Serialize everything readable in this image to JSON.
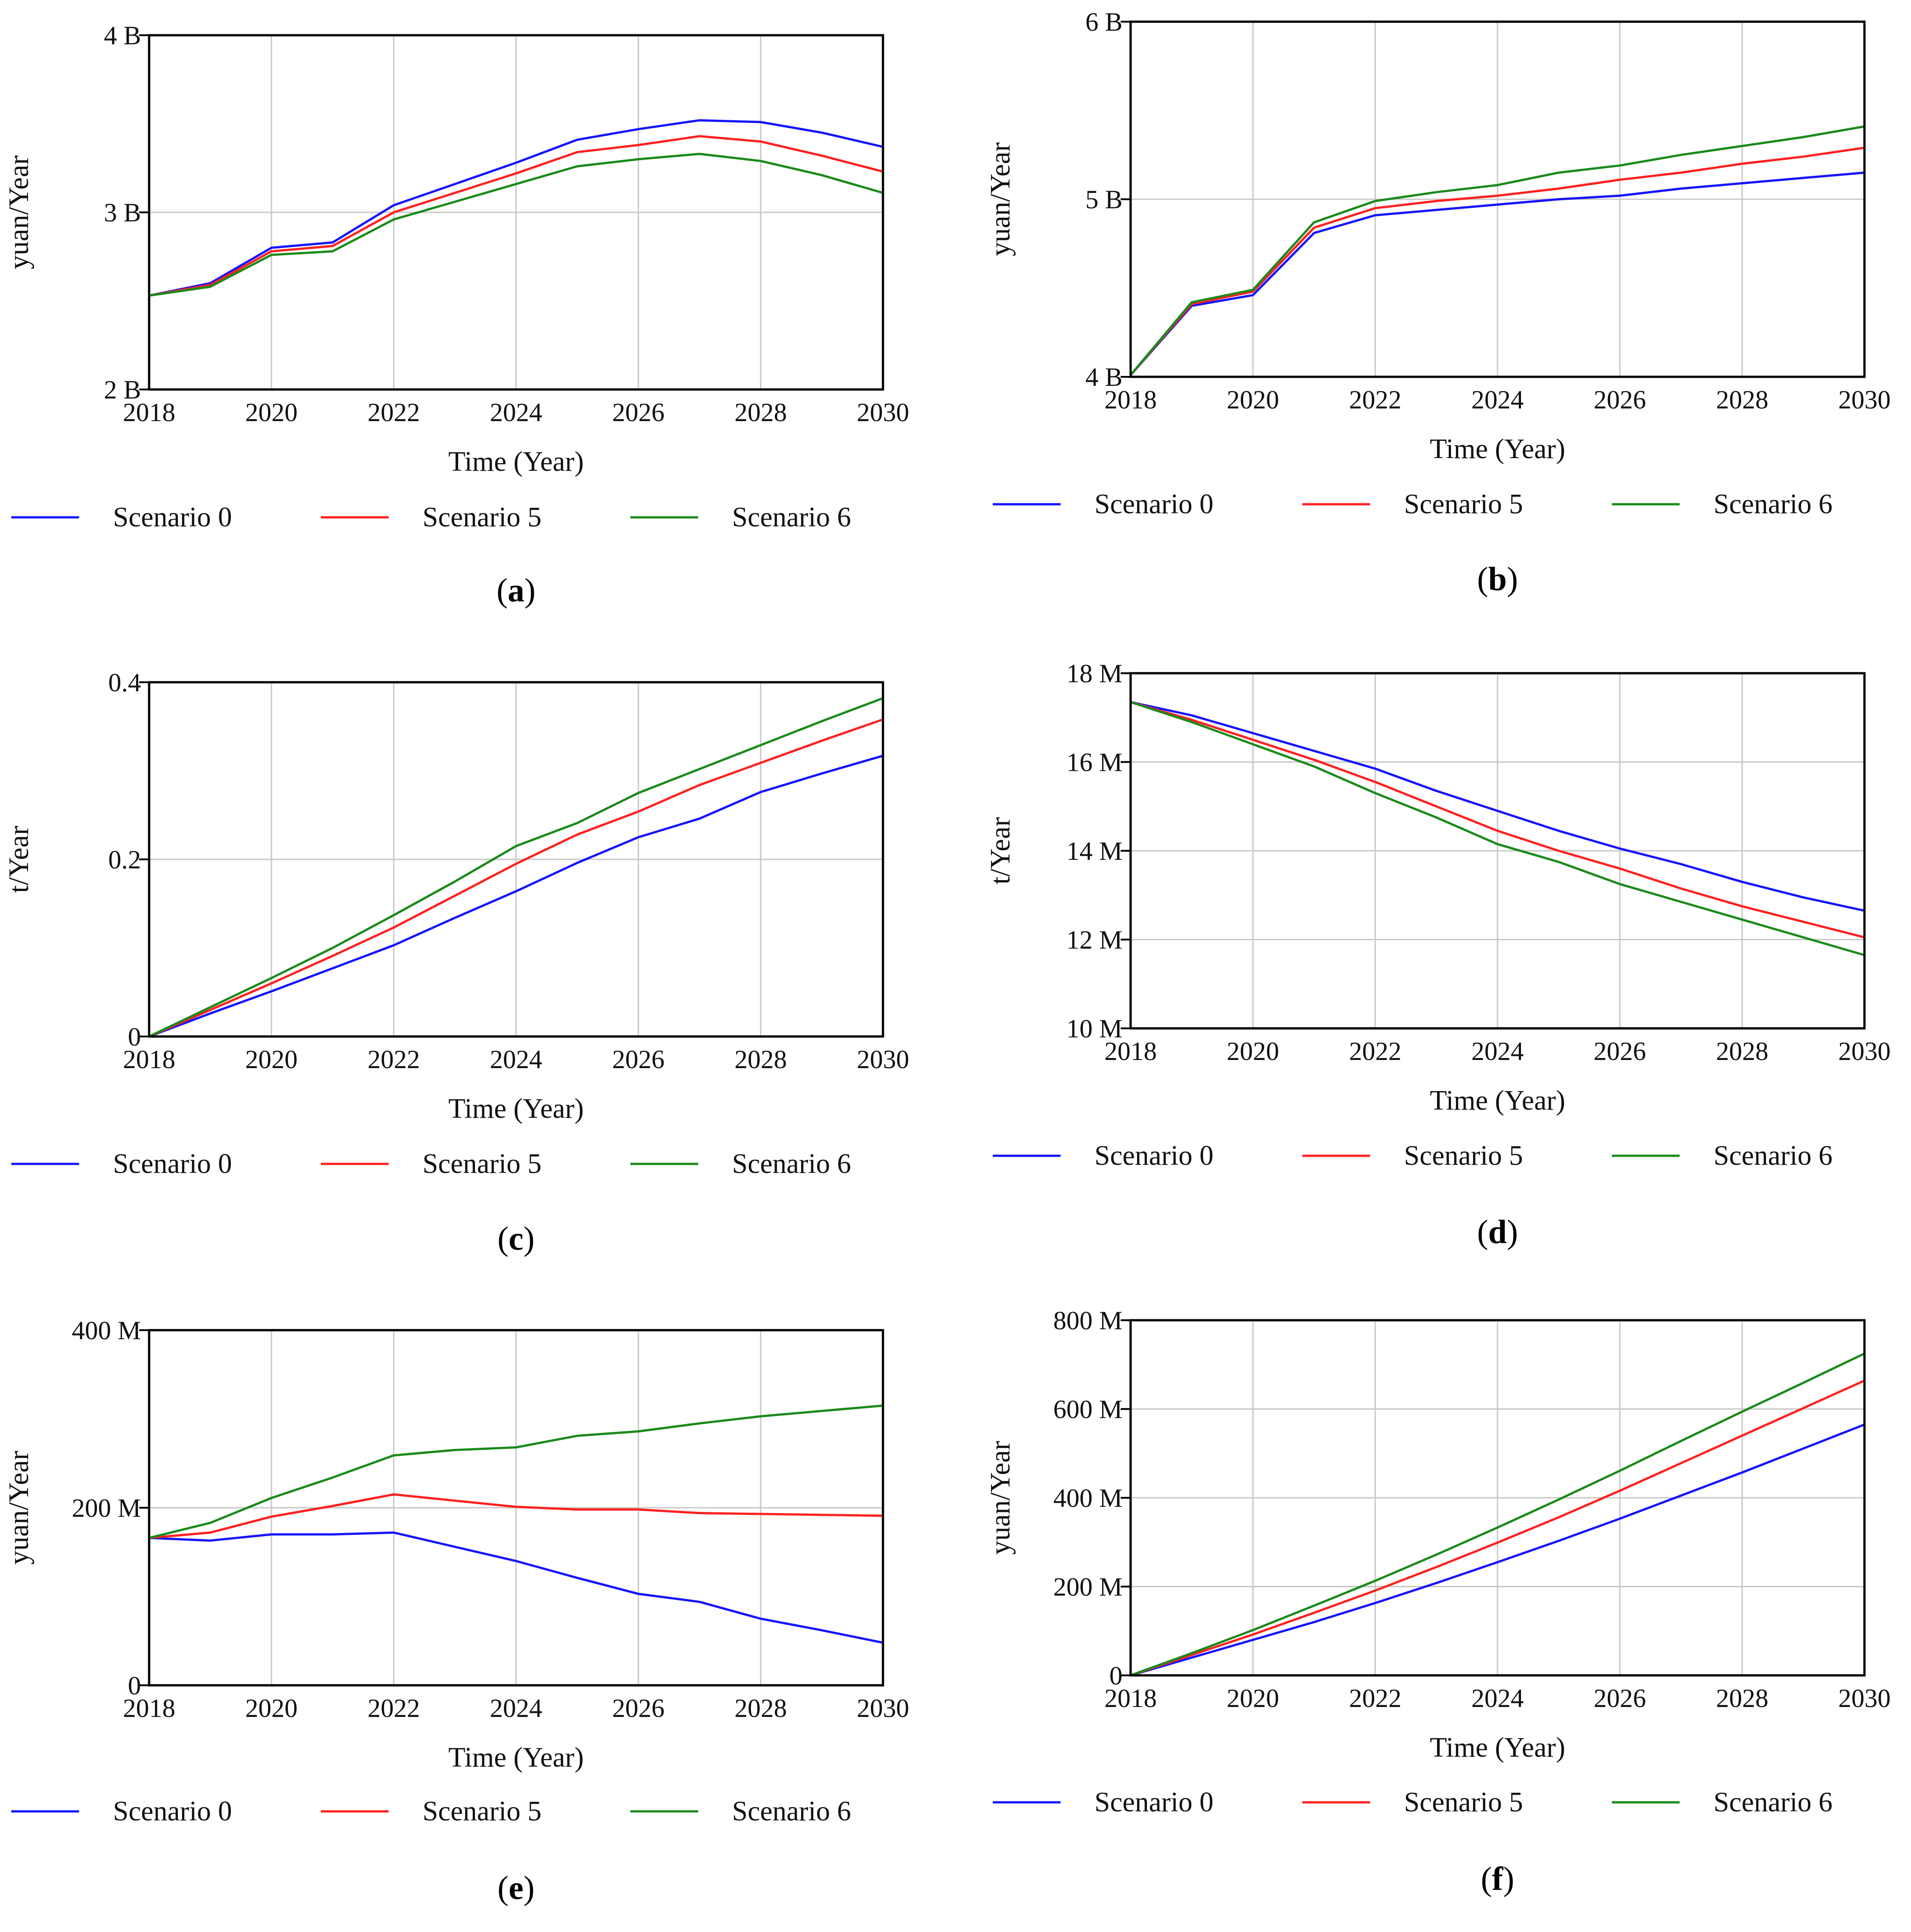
{
  "colors": {
    "Scenario 0": "#1414ff",
    "Scenario 5": "#ff2020",
    "Scenario 6": "#1a8a1a"
  },
  "chart_data": [
    {
      "type": "line",
      "panel_label": "a",
      "xlabel": "Time (Year)",
      "ylabel": "yuan/Year",
      "xlim": [
        2018,
        2030
      ],
      "ylim": [
        2000000000,
        4000000000
      ],
      "x_ticks": [
        2018,
        2020,
        2022,
        2024,
        2026,
        2028,
        2030
      ],
      "y_ticks": [
        2000000000,
        3000000000,
        4000000000
      ],
      "y_tick_labels": [
        "2 B",
        "3 B",
        "4 B"
      ],
      "x": [
        2018,
        2019,
        2020,
        2021,
        2022,
        2023,
        2024,
        2025,
        2026,
        2027,
        2028,
        2029,
        2030
      ],
      "series": [
        {
          "name": "Scenario 0",
          "values": [
            2530000000,
            2600000000,
            2800000000,
            2830000000,
            3040000000,
            3160000000,
            3280000000,
            3410000000,
            3470000000,
            3520000000,
            3510000000,
            3450000000,
            3370000000
          ]
        },
        {
          "name": "Scenario 5",
          "values": [
            2530000000,
            2590000000,
            2780000000,
            2810000000,
            3000000000,
            3110000000,
            3220000000,
            3340000000,
            3380000000,
            3430000000,
            3400000000,
            3320000000,
            3230000000
          ]
        },
        {
          "name": "Scenario 6",
          "values": [
            2530000000,
            2580000000,
            2760000000,
            2780000000,
            2960000000,
            3060000000,
            3160000000,
            3260000000,
            3300000000,
            3330000000,
            3290000000,
            3210000000,
            3110000000
          ]
        }
      ]
    },
    {
      "type": "line",
      "panel_label": "b",
      "xlabel": "Time (Year)",
      "ylabel": "yuan/Year",
      "xlim": [
        2018,
        2030
      ],
      "ylim": [
        4000000000,
        6000000000
      ],
      "x_ticks": [
        2018,
        2020,
        2022,
        2024,
        2026,
        2028,
        2030
      ],
      "y_ticks": [
        4000000000,
        5000000000,
        6000000000
      ],
      "y_tick_labels": [
        "4 B",
        "5 B",
        "6 B"
      ],
      "x": [
        2018,
        2019,
        2020,
        2021,
        2022,
        2023,
        2024,
        2025,
        2026,
        2027,
        2028,
        2029,
        2030
      ],
      "series": [
        {
          "name": "Scenario 0",
          "values": [
            4010000000,
            4400000000,
            4460000000,
            4810000000,
            4910000000,
            4940000000,
            4970000000,
            5000000000,
            5020000000,
            5060000000,
            5090000000,
            5120000000,
            5150000000
          ]
        },
        {
          "name": "Scenario 5",
          "values": [
            4010000000,
            4410000000,
            4480000000,
            4840000000,
            4950000000,
            4990000000,
            5020000000,
            5060000000,
            5110000000,
            5150000000,
            5200000000,
            5240000000,
            5290000000
          ]
        },
        {
          "name": "Scenario 6",
          "values": [
            4010000000,
            4420000000,
            4490000000,
            4870000000,
            4990000000,
            5040000000,
            5080000000,
            5150000000,
            5190000000,
            5250000000,
            5300000000,
            5350000000,
            5410000000
          ]
        }
      ]
    },
    {
      "type": "line",
      "panel_label": "c",
      "xlabel": "Time (Year)",
      "ylabel": "t/Year",
      "xlim": [
        2018,
        2030
      ],
      "ylim": [
        0,
        0.4
      ],
      "x_ticks": [
        2018,
        2020,
        2022,
        2024,
        2026,
        2028,
        2030
      ],
      "y_ticks": [
        0,
        0.2,
        0.4
      ],
      "y_tick_labels": [
        "0",
        "0.2",
        "0.4"
      ],
      "x": [
        2018,
        2019,
        2020,
        2021,
        2022,
        2023,
        2024,
        2025,
        2026,
        2027,
        2028,
        2029,
        2030
      ],
      "series": [
        {
          "name": "Scenario 0",
          "values": [
            0,
            0.026,
            0.051,
            0.077,
            0.103,
            0.134,
            0.164,
            0.196,
            0.225,
            0.246,
            0.276,
            0.297,
            0.317
          ]
        },
        {
          "name": "Scenario 5",
          "values": [
            0,
            0.03,
            0.06,
            0.091,
            0.123,
            0.159,
            0.195,
            0.228,
            0.254,
            0.284,
            0.309,
            0.334,
            0.358
          ]
        },
        {
          "name": "Scenario 6",
          "values": [
            0,
            0.033,
            0.066,
            0.1,
            0.137,
            0.175,
            0.215,
            0.241,
            0.275,
            0.302,
            0.329,
            0.356,
            0.382
          ]
        }
      ]
    },
    {
      "type": "line",
      "panel_label": "d",
      "xlabel": "Time (Year)",
      "ylabel": "t/Year",
      "xlim": [
        2018,
        2030
      ],
      "ylim": [
        10000000,
        18000000
      ],
      "x_ticks": [
        2018,
        2020,
        2022,
        2024,
        2026,
        2028,
        2030
      ],
      "y_ticks": [
        10000000,
        12000000,
        14000000,
        16000000,
        18000000
      ],
      "y_tick_labels": [
        "10 M",
        "12 M",
        "14 M",
        "16 M",
        "18 M"
      ],
      "x": [
        2018,
        2019,
        2020,
        2021,
        2022,
        2023,
        2024,
        2025,
        2026,
        2027,
        2028,
        2029,
        2030
      ],
      "series": [
        {
          "name": "Scenario 0",
          "values": [
            17350000,
            17050000,
            16650000,
            16250000,
            15850000,
            15350000,
            14900000,
            14450000,
            14050000,
            13700000,
            13300000,
            12950000,
            12650000
          ]
        },
        {
          "name": "Scenario 5",
          "values": [
            17350000,
            16950000,
            16500000,
            16050000,
            15550000,
            15000000,
            14450000,
            14000000,
            13600000,
            13150000,
            12750000,
            12400000,
            12050000
          ]
        },
        {
          "name": "Scenario 6",
          "values": [
            17350000,
            16900000,
            16400000,
            15900000,
            15300000,
            14750000,
            14150000,
            13750000,
            13250000,
            12850000,
            12450000,
            12050000,
            11650000
          ]
        }
      ]
    },
    {
      "type": "line",
      "panel_label": "e",
      "xlabel": "Time (Year)",
      "ylabel": "yuan/Year",
      "xlim": [
        2018,
        2030
      ],
      "ylim": [
        0,
        400000000
      ],
      "x_ticks": [
        2018,
        2020,
        2022,
        2024,
        2026,
        2028,
        2030
      ],
      "y_ticks": [
        0,
        200000000,
        400000000
      ],
      "y_tick_labels": [
        "0",
        "200 M",
        "400 M"
      ],
      "x": [
        2018,
        2019,
        2020,
        2021,
        2022,
        2023,
        2024,
        2025,
        2026,
        2027,
        2028,
        2029,
        2030
      ],
      "series": [
        {
          "name": "Scenario 0",
          "values": [
            166000000,
            163000000,
            170000000,
            170000000,
            172000000,
            156000000,
            140000000,
            121000000,
            103000000,
            94000000,
            75000000,
            62000000,
            48000000
          ]
        },
        {
          "name": "Scenario 5",
          "values": [
            166000000,
            172000000,
            190000000,
            202000000,
            215000000,
            208000000,
            201000000,
            198000000,
            198000000,
            194000000,
            193000000,
            192000000,
            191000000
          ]
        },
        {
          "name": "Scenario 6",
          "values": [
            166000000,
            183000000,
            211000000,
            234000000,
            259000000,
            265000000,
            268000000,
            281000000,
            286000000,
            295000000,
            303000000,
            309000000,
            315000000
          ]
        }
      ]
    },
    {
      "type": "line",
      "panel_label": "f",
      "xlabel": "Time (Year)",
      "ylabel": "yuan/Year",
      "xlim": [
        2018,
        2030
      ],
      "ylim": [
        0,
        800000000
      ],
      "x_ticks": [
        2018,
        2020,
        2022,
        2024,
        2026,
        2028,
        2030
      ],
      "y_ticks": [
        0,
        200000000,
        400000000,
        600000000,
        800000000
      ],
      "y_tick_labels": [
        "0",
        "200 M",
        "400 M",
        "600 M",
        "800 M"
      ],
      "x": [
        2018,
        2019,
        2020,
        2021,
        2022,
        2023,
        2024,
        2025,
        2026,
        2027,
        2028,
        2029,
        2030
      ],
      "series": [
        {
          "name": "Scenario 0",
          "values": [
            0,
            40000000,
            80000000,
            120000000,
            163000000,
            208000000,
            255000000,
            303000000,
            353000000,
            405000000,
            457000000,
            511000000,
            565000000
          ]
        },
        {
          "name": "Scenario 5",
          "values": [
            0,
            46000000,
            92000000,
            141000000,
            191000000,
            244000000,
            299000000,
            356000000,
            416000000,
            478000000,
            540000000,
            602000000,
            664000000
          ]
        },
        {
          "name": "Scenario 6",
          "values": [
            0,
            50000000,
            102000000,
            157000000,
            213000000,
            272000000,
            333000000,
            396000000,
            461000000,
            528000000,
            594000000,
            659000000,
            725000000
          ]
        }
      ]
    }
  ]
}
